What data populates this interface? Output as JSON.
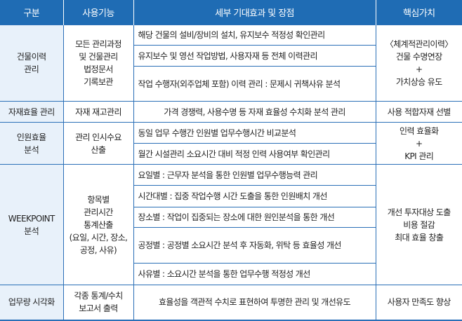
{
  "header": [
    "구분",
    "사용기능",
    "세부 기대효과 및 장점",
    "핵심가치"
  ],
  "groups": [
    {
      "category": [
        "건물이력",
        "관리"
      ],
      "function": [
        "모든 관리과정",
        "및 건물관리",
        "법정문서",
        "기록보관"
      ],
      "details": [
        "해당 건물의 설비/장비의 설치, 유지보수 적정성 확인관리",
        "유지보수 및 영선 작업방법, 사용자재 등 전체 이력관리",
        "작업 수행자(외주업체 포함) 이력 관리 : 문제시 귀책사유 분석"
      ],
      "value": [
        "〈체계적관리이력〉",
        "건물 수명연장",
        "+",
        "가치상승 유도"
      ]
    },
    {
      "category": [
        "자재효율 관리"
      ],
      "function": [
        "자재 재고관리"
      ],
      "details": [
        "가격 경쟁력, 사용수명 등 자재 효율성 수치화 분석 관리"
      ],
      "value": [
        "사용 적합자재 선별"
      ]
    },
    {
      "category": [
        "인원효율",
        "분석"
      ],
      "function": [
        "관리 인시수요",
        "산출"
      ],
      "details": [
        "동일 업무 수행간 인원별 업무수행시간 비교분석",
        "월간 시설관리 소요시간 대비 적정 인력 사용여부 확인관리"
      ],
      "value": [
        "인력 효율화",
        "+",
        "KPI 관리"
      ]
    },
    {
      "category": [
        "WEEKPOINT",
        "분석"
      ],
      "function": [
        "항목별",
        "관리시간",
        "통계산출",
        "(요일, 시간, 장소,",
        "공정, 사유)"
      ],
      "details": [
        "요일별 : 근무자 분석을 통한 인원별 업무수행능력 관리",
        "시간대별 : 집중 작업수행 시간 도출을 통한 인원배치 개선",
        "장소별 : 작업이 집중되는 장소에 대한 원인분석을 통한 개선",
        "공정별 : 공정별 소요시간 분석 후 자동화, 위탁 등 효율성 개선",
        "사유별 : 소요시간 분석을 통한 업무수행 적정성 개선"
      ],
      "value": [
        "개선 투자대상 도출",
        "비용 절감",
        "최대 효율 창출"
      ]
    },
    {
      "category": [
        "업무량 시각화"
      ],
      "function": [
        "각종 통계/수치",
        "보고서 출력"
      ],
      "details": [
        "효율성을 객관적 수치로 표현하여 투명한 관리 및 개선유도"
      ],
      "value": [
        "사용자 만족도 향상"
      ]
    }
  ]
}
